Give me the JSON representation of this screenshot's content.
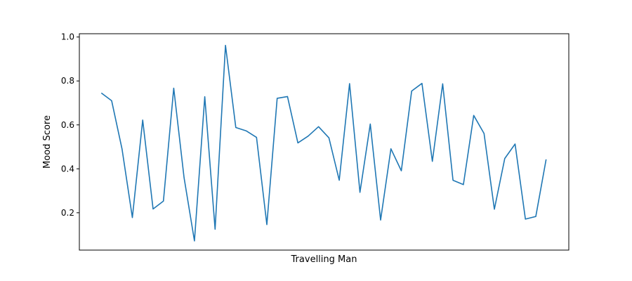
{
  "chart_data": {
    "type": "line",
    "xlabel": "Travelling Man",
    "ylabel": "Mood Score",
    "ylim": [
      0.03,
      1.015
    ],
    "yticks": [
      0.2,
      0.4,
      0.6,
      0.8,
      1.0
    ],
    "ytick_labels": [
      "0.2",
      "0.4",
      "0.6",
      "0.8",
      "1.0"
    ],
    "x_ticks_visible": false,
    "grid": false,
    "line_color": "#1f77b4",
    "series": [
      {
        "values": [
          0.745,
          0.71,
          0.49,
          0.178,
          0.622,
          0.217,
          0.253,
          0.767,
          0.36,
          0.072,
          0.728,
          0.125,
          0.962,
          0.588,
          0.573,
          0.543,
          0.146,
          0.721,
          0.729,
          0.518,
          0.549,
          0.592,
          0.541,
          0.348,
          0.788,
          0.293,
          0.604,
          0.167,
          0.491,
          0.391,
          0.754,
          0.789,
          0.434,
          0.787,
          0.348,
          0.328,
          0.643,
          0.561,
          0.216,
          0.447,
          0.513,
          0.171,
          0.183,
          0.443
        ]
      }
    ]
  }
}
